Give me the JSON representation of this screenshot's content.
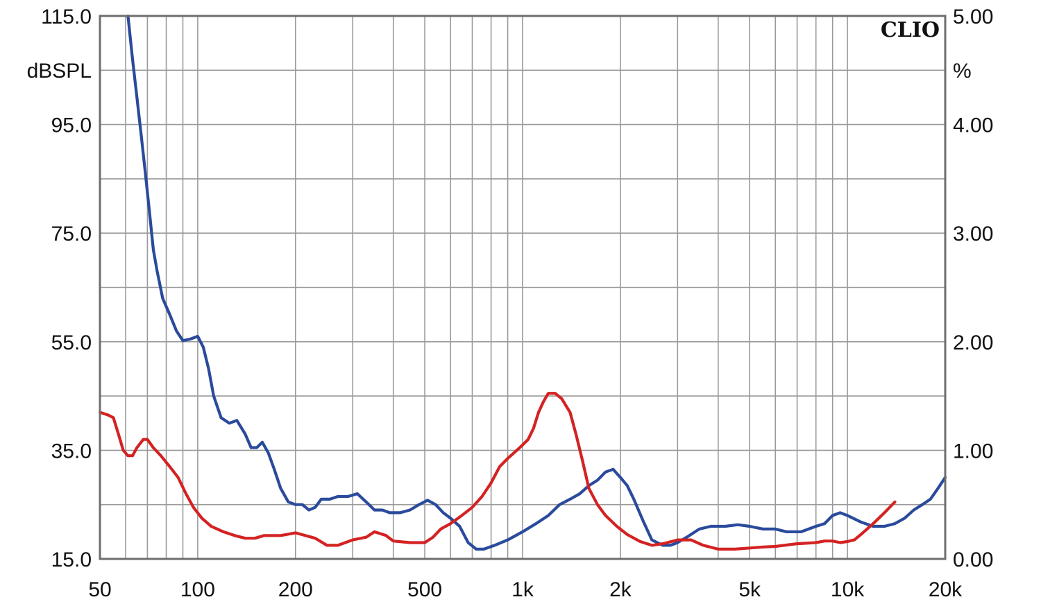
{
  "chart_data": {
    "type": "line",
    "brand": "CLIO",
    "y_left_unit": "dBSPL",
    "y_right_unit": "%",
    "x_scale": "log",
    "xlim": [
      50,
      20000
    ],
    "y_left_lim": [
      15,
      115
    ],
    "y_right_lim": [
      0,
      5
    ],
    "x_ticks": [
      {
        "value": 50,
        "label": "50"
      },
      {
        "value": 100,
        "label": "100"
      },
      {
        "value": 200,
        "label": "200"
      },
      {
        "value": 500,
        "label": "500"
      },
      {
        "value": 1000,
        "label": "1k"
      },
      {
        "value": 2000,
        "label": "2k"
      },
      {
        "value": 5000,
        "label": "5k"
      },
      {
        "value": 10000,
        "label": "10k"
      },
      {
        "value": 20000,
        "label": "20k"
      }
    ],
    "y_left_ticks": [
      "115.0",
      "95.0",
      "75.0",
      "55.0",
      "35.0",
      "15.0"
    ],
    "y_right_ticks": [
      "5.00",
      "4.00",
      "3.00",
      "2.00",
      "1.00",
      "0.00"
    ],
    "grid": true,
    "colors": {
      "blue_series": "#2a4a9c",
      "red_series": "#d42222",
      "grid": "#9a9a9a",
      "frame": "#6e6e6e"
    },
    "series": [
      {
        "color": "#2a4a9c",
        "axis": "left",
        "points": [
          [
            61,
            115
          ],
          [
            63,
            107
          ],
          [
            65,
            100
          ],
          [
            67,
            93
          ],
          [
            69,
            86
          ],
          [
            71,
            79
          ],
          [
            73,
            72
          ],
          [
            75,
            68
          ],
          [
            78,
            63
          ],
          [
            82,
            60
          ],
          [
            86,
            57
          ],
          [
            90,
            55.2
          ],
          [
            95,
            55.5
          ],
          [
            100,
            56
          ],
          [
            104,
            54
          ],
          [
            108,
            50
          ],
          [
            112,
            45
          ],
          [
            118,
            41
          ],
          [
            125,
            40
          ],
          [
            132,
            40.5
          ],
          [
            140,
            38
          ],
          [
            146,
            35.5
          ],
          [
            152,
            35.5
          ],
          [
            158,
            36.5
          ],
          [
            165,
            34.5
          ],
          [
            172,
            31.5
          ],
          [
            180,
            28
          ],
          [
            190,
            25.5
          ],
          [
            200,
            25
          ],
          [
            210,
            25
          ],
          [
            220,
            24
          ],
          [
            230,
            24.5
          ],
          [
            240,
            26
          ],
          [
            255,
            26
          ],
          [
            270,
            26.5
          ],
          [
            290,
            26.5
          ],
          [
            310,
            27
          ],
          [
            330,
            25.5
          ],
          [
            350,
            24
          ],
          [
            370,
            24
          ],
          [
            390,
            23.5
          ],
          [
            420,
            23.5
          ],
          [
            450,
            24
          ],
          [
            480,
            25
          ],
          [
            510,
            25.8
          ],
          [
            540,
            25
          ],
          [
            570,
            23.5
          ],
          [
            600,
            22.5
          ],
          [
            640,
            21
          ],
          [
            680,
            18
          ],
          [
            720,
            16.8
          ],
          [
            760,
            16.8
          ],
          [
            820,
            17.5
          ],
          [
            900,
            18.5
          ],
          [
            1000,
            20
          ],
          [
            1100,
            21.5
          ],
          [
            1200,
            23
          ],
          [
            1300,
            25
          ],
          [
            1400,
            26
          ],
          [
            1500,
            27
          ],
          [
            1600,
            28.5
          ],
          [
            1700,
            29.5
          ],
          [
            1800,
            31
          ],
          [
            1900,
            31.5
          ],
          [
            2000,
            30
          ],
          [
            2100,
            28.5
          ],
          [
            2200,
            26
          ],
          [
            2350,
            22
          ],
          [
            2500,
            18.5
          ],
          [
            2700,
            17.5
          ],
          [
            2850,
            17.5
          ],
          [
            3000,
            18
          ],
          [
            3200,
            19
          ],
          [
            3500,
            20.5
          ],
          [
            3800,
            21
          ],
          [
            4200,
            21
          ],
          [
            4600,
            21.3
          ],
          [
            5000,
            21
          ],
          [
            5500,
            20.5
          ],
          [
            6000,
            20.5
          ],
          [
            6500,
            20
          ],
          [
            7200,
            20
          ],
          [
            8000,
            21
          ],
          [
            8500,
            21.5
          ],
          [
            9000,
            23
          ],
          [
            9500,
            23.5
          ],
          [
            10000,
            23
          ],
          [
            11000,
            21.8
          ],
          [
            12000,
            21
          ],
          [
            13000,
            21
          ],
          [
            14000,
            21.5
          ],
          [
            15000,
            22.5
          ],
          [
            16000,
            24
          ],
          [
            17000,
            25
          ],
          [
            18000,
            26
          ],
          [
            19000,
            28
          ],
          [
            20000,
            30
          ]
        ]
      },
      {
        "color": "#d42222",
        "axis": "left",
        "points": [
          [
            50,
            42
          ],
          [
            53,
            41.5
          ],
          [
            55,
            41
          ],
          [
            57,
            38
          ],
          [
            59,
            35
          ],
          [
            61,
            34
          ],
          [
            63,
            34
          ],
          [
            65,
            35.5
          ],
          [
            68,
            37
          ],
          [
            70,
            37
          ],
          [
            73,
            35.5
          ],
          [
            77,
            34
          ],
          [
            82,
            32
          ],
          [
            87,
            30
          ],
          [
            92,
            27
          ],
          [
            97,
            24.5
          ],
          [
            103,
            22.5
          ],
          [
            110,
            21
          ],
          [
            120,
            20
          ],
          [
            130,
            19.3
          ],
          [
            140,
            18.8
          ],
          [
            150,
            18.8
          ],
          [
            160,
            19.3
          ],
          [
            180,
            19.3
          ],
          [
            200,
            19.8
          ],
          [
            230,
            18.8
          ],
          [
            250,
            17.5
          ],
          [
            270,
            17.5
          ],
          [
            300,
            18.5
          ],
          [
            330,
            19
          ],
          [
            350,
            20
          ],
          [
            380,
            19.3
          ],
          [
            400,
            18.3
          ],
          [
            450,
            18
          ],
          [
            500,
            18
          ],
          [
            530,
            19
          ],
          [
            560,
            20.5
          ],
          [
            600,
            21.5
          ],
          [
            650,
            23
          ],
          [
            700,
            24.5
          ],
          [
            750,
            26.5
          ],
          [
            800,
            29
          ],
          [
            850,
            32
          ],
          [
            900,
            33.5
          ],
          [
            960,
            35
          ],
          [
            1000,
            36
          ],
          [
            1040,
            37
          ],
          [
            1080,
            39
          ],
          [
            1120,
            42
          ],
          [
            1160,
            44
          ],
          [
            1200,
            45.5
          ],
          [
            1260,
            45.5
          ],
          [
            1320,
            44.5
          ],
          [
            1400,
            42
          ],
          [
            1460,
            38
          ],
          [
            1530,
            33
          ],
          [
            1600,
            28
          ],
          [
            1700,
            25
          ],
          [
            1800,
            23
          ],
          [
            1950,
            21
          ],
          [
            2100,
            19.5
          ],
          [
            2300,
            18.2
          ],
          [
            2500,
            17.5
          ],
          [
            2700,
            17.8
          ],
          [
            3000,
            18.5
          ],
          [
            3300,
            18.5
          ],
          [
            3600,
            17.5
          ],
          [
            4000,
            16.8
          ],
          [
            4500,
            16.8
          ],
          [
            5000,
            17
          ],
          [
            5500,
            17.2
          ],
          [
            6000,
            17.3
          ],
          [
            7000,
            17.8
          ],
          [
            8000,
            18
          ],
          [
            8500,
            18.3
          ],
          [
            9000,
            18.3
          ],
          [
            9500,
            18
          ],
          [
            10000,
            18.2
          ],
          [
            10500,
            18.5
          ],
          [
            11000,
            19.5
          ],
          [
            12000,
            21.5
          ],
          [
            13000,
            23.5
          ],
          [
            14000,
            25.5
          ]
        ]
      }
    ]
  }
}
